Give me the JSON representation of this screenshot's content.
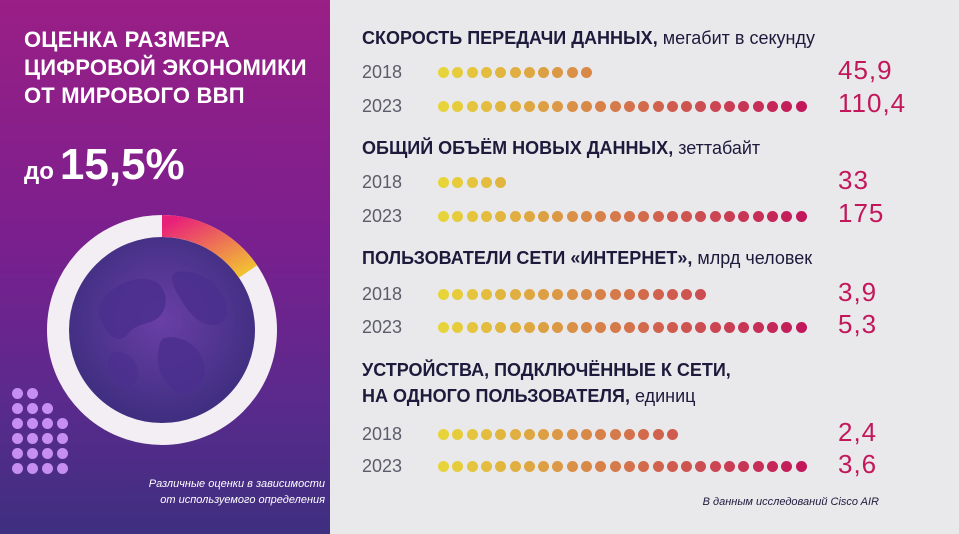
{
  "left_panel": {
    "title_lines": [
      "ОЦЕНКА РАЗМЕРА",
      "ЦИФРОВОЙ ЭКОНОМИКИ",
      "ОТ МИРОВОГО ВВП"
    ],
    "estimate_prefix": "до",
    "estimate_value": "15,5%",
    "note_lines": [
      "Различные оценки в зависимости",
      "от используемого определения"
    ]
  },
  "source": "В данным исследований Cisco AIR",
  "colors": {
    "panel_top": "#9a1f86",
    "panel_bottom": "#3e2f80",
    "dot_start": "#e7d43a",
    "dot_end": "#c2185b",
    "value_text": "#c2185b",
    "donut_ring": "#f3eef3",
    "donut_highlight_start": "#e8207a",
    "donut_highlight_end": "#f2c232"
  },
  "icons": [
    "globe-icon"
  ],
  "chart_data": [
    {
      "type": "pie",
      "title": "ОЦЕНКА РАЗМЕРА ЦИФРОВОЙ ЭКОНОМИКИ ОТ МИРОВОГО ВВП",
      "slices": [
        {
          "label": "до 15,5%",
          "value": 15.5
        },
        {
          "label": "",
          "value": 84.5
        }
      ]
    },
    {
      "type": "bar",
      "title": "СКОРОСТЬ ПЕРЕДАЧИ ДАННЫХ",
      "unit": "мегабит в секунду",
      "categories": [
        "2018",
        "2023"
      ],
      "values": [
        45.9,
        110.4
      ],
      "value_labels": [
        "45,9",
        "110,4"
      ]
    },
    {
      "type": "bar",
      "title": "ОБЩИЙ ОБЪЁМ НОВЫХ ДАННЫХ",
      "unit": "зеттабайт",
      "categories": [
        "2018",
        "2023"
      ],
      "values": [
        33,
        175
      ],
      "value_labels": [
        "33",
        "175"
      ]
    },
    {
      "type": "bar",
      "title": "ПОЛЬЗОВАТЕЛИ СЕТИ «ИНТЕРНЕТ»",
      "unit": "млрд человек",
      "categories": [
        "2018",
        "2023"
      ],
      "values": [
        3.9,
        5.3
      ],
      "value_labels": [
        "3,9",
        "5,3"
      ]
    },
    {
      "type": "bar",
      "title_lines": [
        "УСТРОЙСТВА, ПОДКЛЮЧЁННЫЕ К СЕТИ,",
        "НА ОДНОГО ПОЛЬЗОВАТЕЛЯ"
      ],
      "unit": "единиц",
      "categories": [
        "2018",
        "2023"
      ],
      "values": [
        2.4,
        3.6
      ],
      "value_labels": [
        "2,4",
        "3,6"
      ]
    }
  ]
}
